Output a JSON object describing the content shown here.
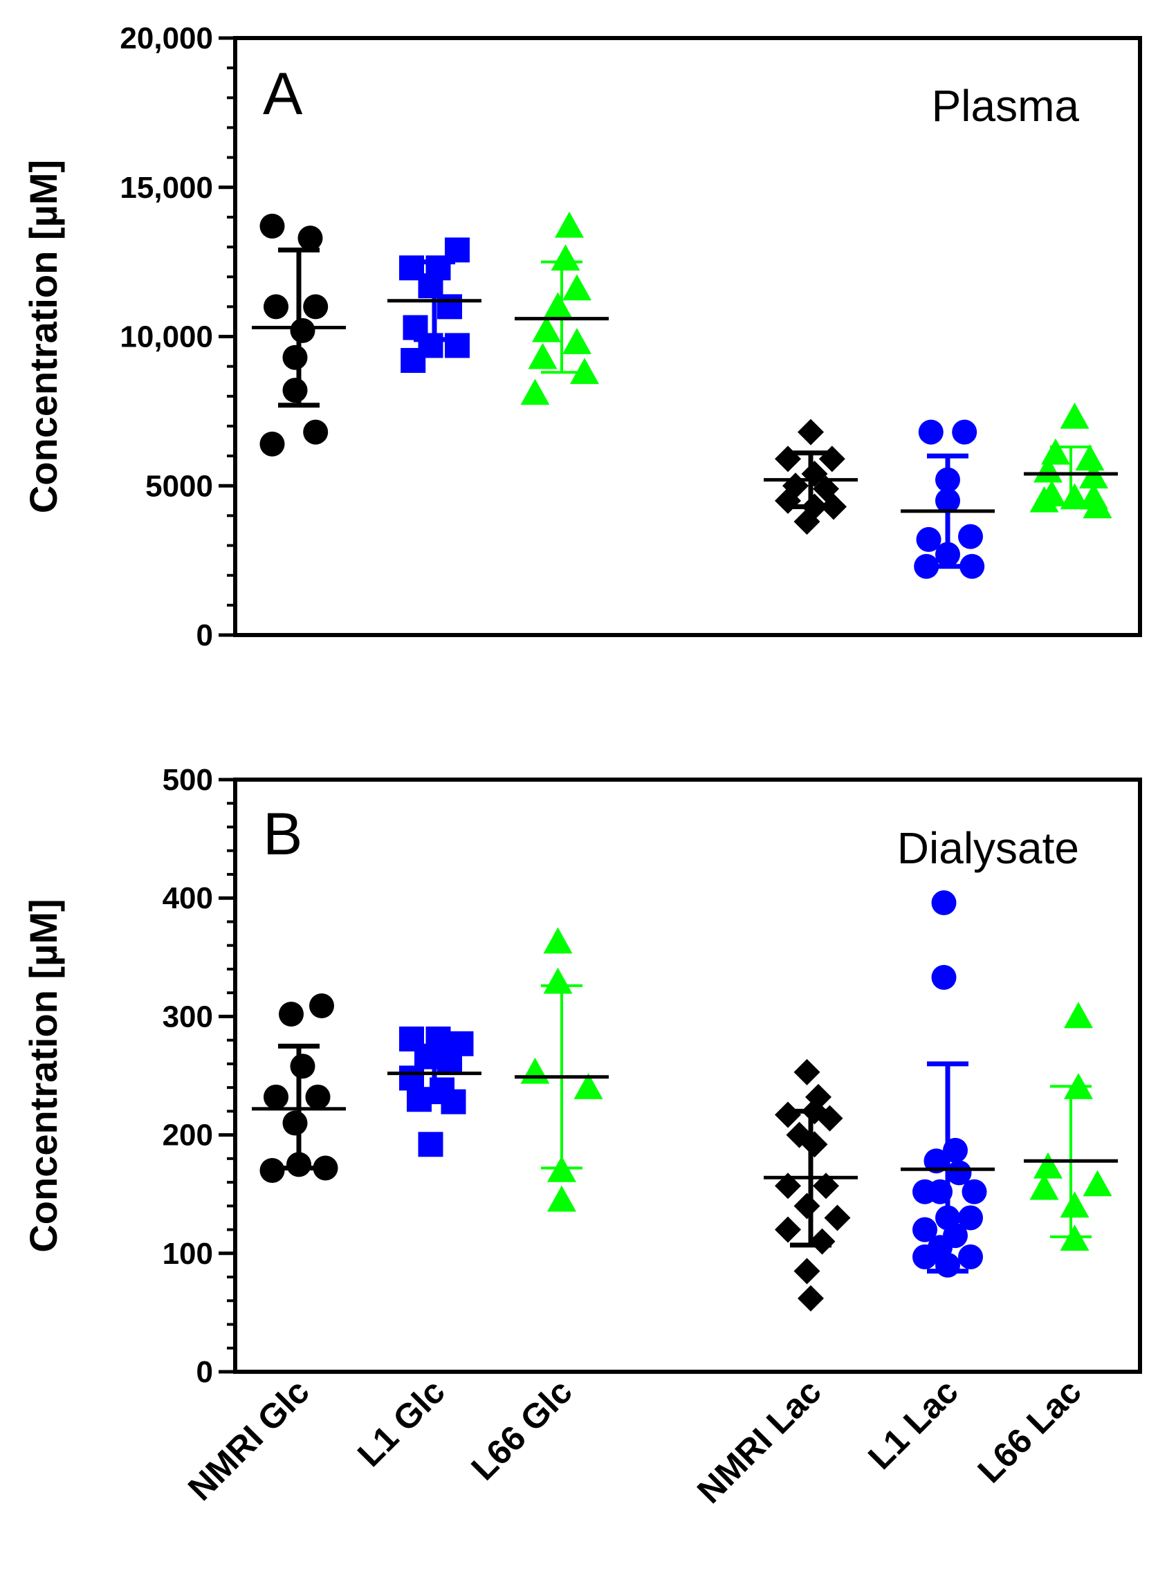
{
  "chart_data": [
    {
      "type": "scatter",
      "panel_label": "A",
      "title": "Plasma",
      "ylabel": "Concentration [µM]",
      "ylim": [
        0,
        20000
      ],
      "yticks": [
        0,
        5000,
        10000,
        15000,
        20000
      ],
      "yticklabels": [
        "0",
        "5000",
        "10,000",
        "15,000",
        "20,000"
      ],
      "categories": [
        "NMRI Glc",
        "L1 Glc",
        "L66 Glc",
        "NMRI Lac",
        "L1 Lac",
        "L66 Lac"
      ],
      "series": [
        {
          "name": "NMRI Glc",
          "color": "#000000",
          "marker": "circle",
          "mean": 10300,
          "sd_low": 7700,
          "sd_high": 12900,
          "points": [
            [
              -0.35,
              13700
            ],
            [
              0.15,
              13300
            ],
            [
              -0.3,
              11000
            ],
            [
              0.22,
              11000
            ],
            [
              0.05,
              10200
            ],
            [
              -0.05,
              9300
            ],
            [
              -0.05,
              8200
            ],
            [
              -0.35,
              6400
            ],
            [
              0.22,
              6800
            ]
          ]
        },
        {
          "name": "L1 Glc",
          "color": "#0000ff",
          "marker": "square",
          "mean": 11200,
          "sd_low": 9900,
          "sd_high": 12500,
          "points": [
            [
              -0.3,
              12300
            ],
            [
              0.05,
              12300
            ],
            [
              0.3,
              12900
            ],
            [
              -0.05,
              11700
            ],
            [
              0.2,
              11000
            ],
            [
              -0.25,
              10300
            ],
            [
              -0.05,
              9700
            ],
            [
              0.3,
              9700
            ],
            [
              -0.28,
              9200
            ]
          ]
        },
        {
          "name": "L66 Glc",
          "color": "#00ff00",
          "marker": "triangle",
          "mean": 10600,
          "sd_low": 8800,
          "sd_high": 12500,
          "points": [
            [
              0.1,
              13700
            ],
            [
              0.05,
              12600
            ],
            [
              0.2,
              11600
            ],
            [
              -0.05,
              11000
            ],
            [
              -0.2,
              10200
            ],
            [
              0.2,
              9800
            ],
            [
              -0.25,
              9300
            ],
            [
              -0.35,
              8100
            ],
            [
              0.3,
              8800
            ]
          ]
        },
        {
          "name": "NMRI Lac",
          "color": "#000000",
          "marker": "diamond",
          "mean": 5200,
          "sd_low": 4300,
          "sd_high": 6100,
          "points": [
            [
              0.0,
              6800
            ],
            [
              -0.3,
              5900
            ],
            [
              0.28,
              5900
            ],
            [
              0.05,
              5400
            ],
            [
              -0.2,
              5000
            ],
            [
              0.2,
              4900
            ],
            [
              -0.3,
              4500
            ],
            [
              0.05,
              4300
            ],
            [
              0.3,
              4300
            ],
            [
              -0.05,
              3800
            ]
          ]
        },
        {
          "name": "L1 Lac",
          "color": "#0000ff",
          "marker": "circle",
          "mean": 4150,
          "sd_low": 2300,
          "sd_high": 6000,
          "points": [
            [
              -0.22,
              6800
            ],
            [
              0.22,
              6800
            ],
            [
              0.0,
              5200
            ],
            [
              0.0,
              4500
            ],
            [
              -0.25,
              3200
            ],
            [
              0.3,
              3300
            ],
            [
              0.0,
              2700
            ],
            [
              -0.28,
              2300
            ],
            [
              0.32,
              2300
            ]
          ]
        },
        {
          "name": "L66 Lac",
          "color": "#00ff00",
          "marker": "triangle",
          "mean": 5400,
          "sd_low": 4400,
          "sd_high": 6300,
          "points": [
            [
              0.05,
              7300
            ],
            [
              -0.2,
              6100
            ],
            [
              0.25,
              5900
            ],
            [
              -0.3,
              5500
            ],
            [
              0.3,
              5300
            ],
            [
              -0.25,
              4700
            ],
            [
              0.05,
              4600
            ],
            [
              0.3,
              4600
            ],
            [
              -0.35,
              4500
            ],
            [
              0.35,
              4300
            ]
          ]
        }
      ]
    },
    {
      "type": "scatter",
      "panel_label": "B",
      "title": "Dialysate",
      "ylabel": "Concentration [µM]",
      "ylim": [
        0,
        500
      ],
      "yticks": [
        0,
        100,
        200,
        300,
        400,
        500
      ],
      "yticklabels": [
        "0",
        "100",
        "200",
        "300",
        "400",
        "500"
      ],
      "categories": [
        "NMRI Glc",
        "L1 Glc",
        "L66 Glc",
        "NMRI Lac",
        "L1 Lac",
        "L66 Lac"
      ],
      "series": [
        {
          "name": "NMRI Glc",
          "color": "#000000",
          "marker": "circle",
          "mean": 222,
          "sd_low": 172,
          "sd_high": 275,
          "points": [
            [
              0.3,
              309
            ],
            [
              -0.1,
              302
            ],
            [
              0.05,
              258
            ],
            [
              -0.3,
              232
            ],
            [
              0.25,
              232
            ],
            [
              -0.05,
              210
            ],
            [
              0.0,
              175
            ],
            [
              -0.35,
              170
            ],
            [
              0.35,
              172
            ]
          ]
        },
        {
          "name": "L1 Glc",
          "color": "#0000ff",
          "marker": "square",
          "mean": 252,
          "sd_low": 228,
          "sd_high": 275,
          "points": [
            [
              -0.3,
              281
            ],
            [
              0.05,
              281
            ],
            [
              0.35,
              277
            ],
            [
              -0.1,
              266
            ],
            [
              0.2,
              262
            ],
            [
              -0.3,
              248
            ],
            [
              0.1,
              238
            ],
            [
              -0.2,
              230
            ],
            [
              0.25,
              228
            ],
            [
              -0.05,
              192
            ]
          ]
        },
        {
          "name": "L66 Glc",
          "color": "#00ff00",
          "marker": "triangle",
          "mean": 249,
          "sd_low": 172,
          "sd_high": 326,
          "points": [
            [
              -0.05,
              363
            ],
            [
              -0.05,
              329
            ],
            [
              -0.35,
              253
            ],
            [
              0.35,
              240
            ],
            [
              0.0,
              170
            ],
            [
              0.0,
              145
            ]
          ]
        },
        {
          "name": "NMRI Lac",
          "color": "#000000",
          "marker": "diamond",
          "mean": 164,
          "sd_low": 107,
          "sd_high": 220,
          "points": [
            [
              -0.05,
              253
            ],
            [
              0.1,
              232
            ],
            [
              -0.3,
              217
            ],
            [
              0.05,
              220
            ],
            [
              0.25,
              214
            ],
            [
              -0.15,
              200
            ],
            [
              0.05,
              192
            ],
            [
              -0.3,
              157
            ],
            [
              0.2,
              157
            ],
            [
              -0.05,
              140
            ],
            [
              0.35,
              130
            ],
            [
              -0.3,
              120
            ],
            [
              0.15,
              110
            ],
            [
              -0.05,
              85
            ],
            [
              0.0,
              62
            ]
          ]
        },
        {
          "name": "L1 Lac",
          "color": "#0000ff",
          "marker": "circle",
          "mean": 171,
          "sd_low": 85,
          "sd_high": 260,
          "points": [
            [
              -0.05,
              396
            ],
            [
              -0.05,
              333
            ],
            [
              0.1,
              187
            ],
            [
              -0.15,
              178
            ],
            [
              0.15,
              168
            ],
            [
              -0.3,
              152
            ],
            [
              0.35,
              152
            ],
            [
              -0.1,
              152
            ],
            [
              0.3,
              130
            ],
            [
              0.0,
              130
            ],
            [
              -0.3,
              120
            ],
            [
              0.1,
              115
            ],
            [
              -0.1,
              105
            ],
            [
              0.3,
              97
            ],
            [
              -0.3,
              97
            ],
            [
              0.0,
              90
            ]
          ]
        },
        {
          "name": "L66 Lac",
          "color": "#00ff00",
          "marker": "triangle",
          "mean": 178,
          "sd_low": 114,
          "sd_high": 241,
          "points": [
            [
              0.1,
              300
            ],
            [
              0.1,
              240
            ],
            [
              -0.3,
              173
            ],
            [
              0.35,
              158
            ],
            [
              0.05,
              140
            ],
            [
              -0.35,
              155
            ],
            [
              0.05,
              112
            ]
          ]
        }
      ]
    }
  ]
}
